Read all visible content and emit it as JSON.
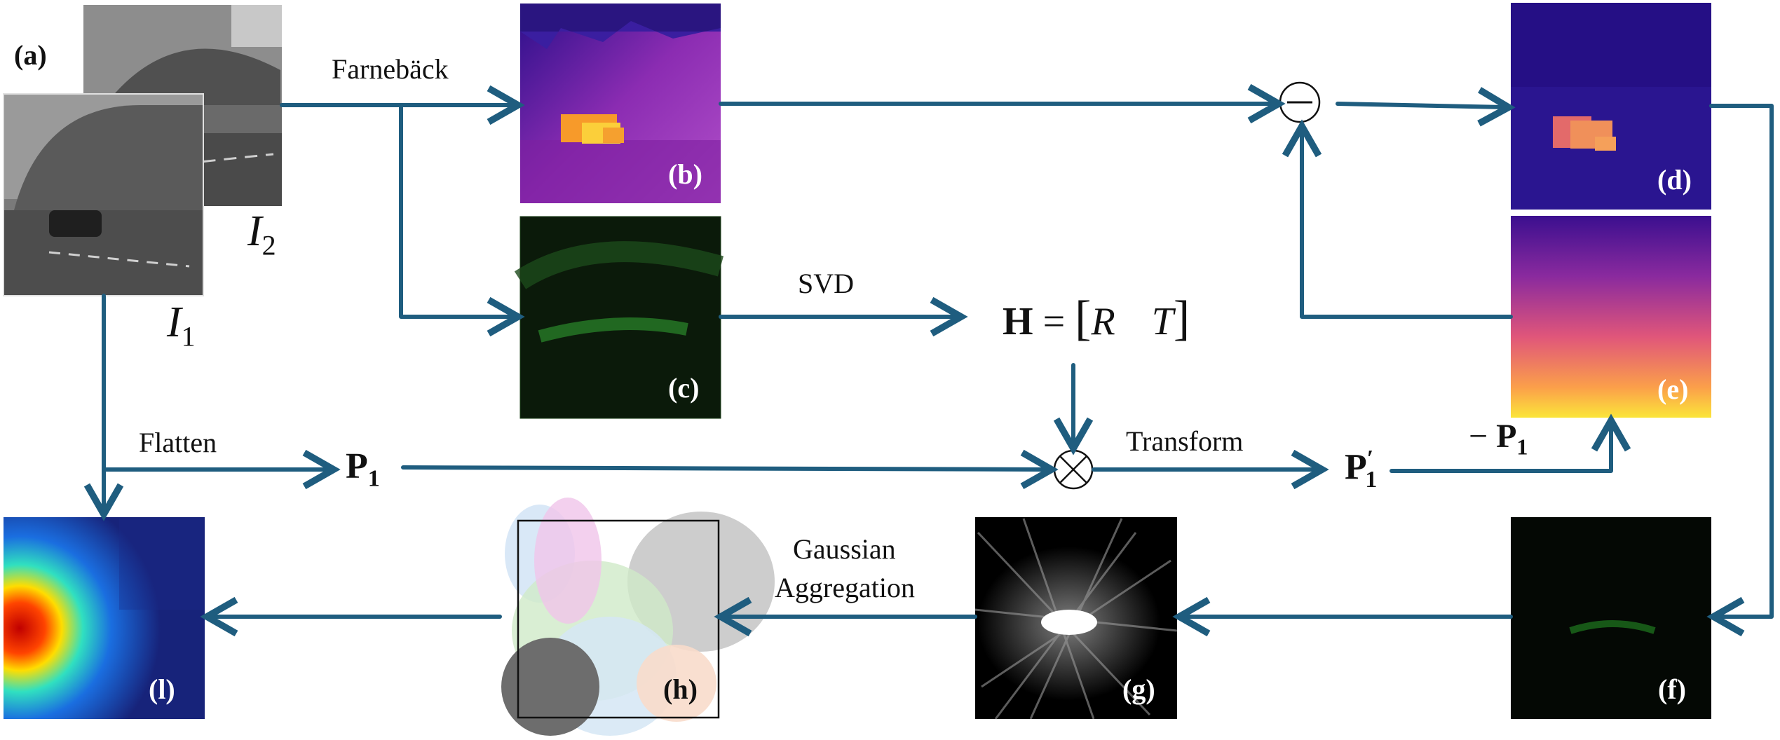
{
  "colors": {
    "arrow": "#1f5d7f",
    "text": "#111111"
  },
  "panels": {
    "a": "(a)",
    "b": "(b)",
    "c": "(c)",
    "d": "(d)",
    "e": "(e)",
    "f": "(f)",
    "g": "(g)",
    "h": "(h)",
    "l": "(l)"
  },
  "inputs": {
    "i1_main": "I",
    "i1_sub": "1",
    "i2_main": "I",
    "i2_sub": "2"
  },
  "edges": {
    "farneback": "Farnebäck",
    "svd": "SVD",
    "flatten": "Flatten",
    "transform": "Transform",
    "gaussian_1": "Gaussian",
    "gaussian_2": "Aggregation"
  },
  "math": {
    "h_matrix": "H = [R   T]",
    "h_bold": "H",
    "h_eq": "=",
    "h_R": "R",
    "h_T": "T",
    "p1_main": "P",
    "p1_sub": "1",
    "p1p_main": "P",
    "p1p_prime": "′",
    "p1p_sub": "1",
    "neg_p1_sign": "−",
    "neg_p1_main": "P",
    "neg_p1_sub": "1"
  },
  "operators": {
    "minus": "−",
    "multiply": "×"
  }
}
